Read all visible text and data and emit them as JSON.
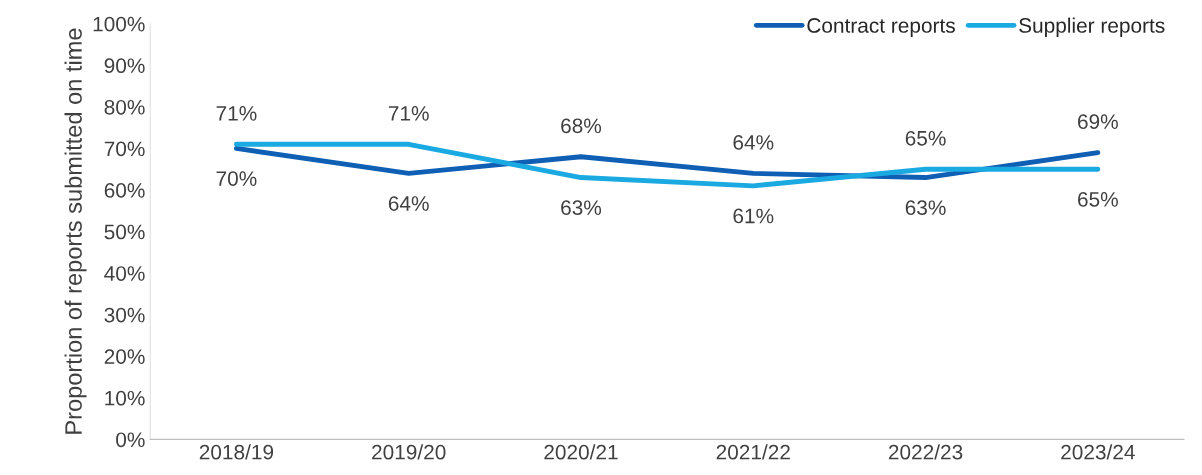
{
  "chart_data": {
    "type": "line",
    "ylabel": "Proportion of reports submitted on time",
    "categories": [
      "2018/19",
      "2019/20",
      "2020/21",
      "2021/22",
      "2022/23",
      "2023/24"
    ],
    "series": [
      {
        "name": "Contract reports",
        "color": "#0f5fb5",
        "values": [
          70,
          64,
          68,
          64,
          63,
          69
        ],
        "value_labels": [
          "70%",
          "64%",
          "68%",
          "64%",
          "63%",
          "69%"
        ]
      },
      {
        "name": "Supplier reports",
        "color": "#1ba9e1",
        "values": [
          71,
          71,
          63,
          61,
          65,
          65
        ],
        "value_labels": [
          "71%",
          "71%",
          "63%",
          "61%",
          "65%",
          "65%"
        ]
      }
    ],
    "ylim": [
      0,
      100
    ],
    "yticks": [
      {
        "value": 0,
        "label": "0%"
      },
      {
        "value": 10,
        "label": "10%"
      },
      {
        "value": 20,
        "label": "20%"
      },
      {
        "value": 30,
        "label": "30%"
      },
      {
        "value": 40,
        "label": "40%"
      },
      {
        "value": 50,
        "label": "50%"
      },
      {
        "value": 60,
        "label": "60%"
      },
      {
        "value": 70,
        "label": "70%"
      },
      {
        "value": 80,
        "label": "80%"
      },
      {
        "value": 90,
        "label": "90%"
      },
      {
        "value": 100,
        "label": "100%"
      }
    ],
    "grid": false,
    "legend": "top right",
    "marker": "none",
    "line_style": "solid"
  }
}
